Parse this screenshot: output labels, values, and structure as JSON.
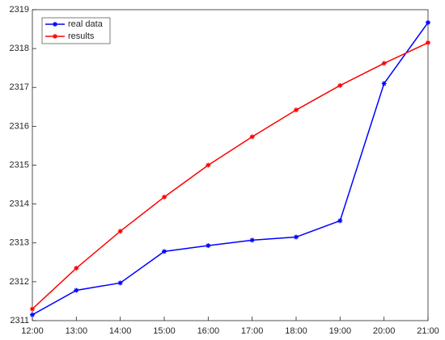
{
  "chart_data": {
    "type": "line",
    "categories": [
      "12:00",
      "13:00",
      "14:00",
      "15:00",
      "16:00",
      "17:00",
      "18:00",
      "19:00",
      "20:00",
      "21:00"
    ],
    "series": [
      {
        "name": "real data",
        "color": "#0000ff",
        "values": [
          2311.15,
          2311.78,
          2311.97,
          2312.78,
          2312.93,
          2313.07,
          2313.15,
          2313.57,
          2317.1,
          2318.67
        ]
      },
      {
        "name": "results",
        "color": "#ff0000",
        "values": [
          2311.3,
          2312.35,
          2313.3,
          2314.18,
          2315.0,
          2315.73,
          2316.42,
          2317.05,
          2317.62,
          2318.15
        ]
      }
    ],
    "ylim": [
      2311,
      2319
    ],
    "yticks": [
      2311,
      2312,
      2313,
      2314,
      2315,
      2316,
      2317,
      2318,
      2319
    ],
    "grid": false,
    "legend": "upper-left"
  }
}
